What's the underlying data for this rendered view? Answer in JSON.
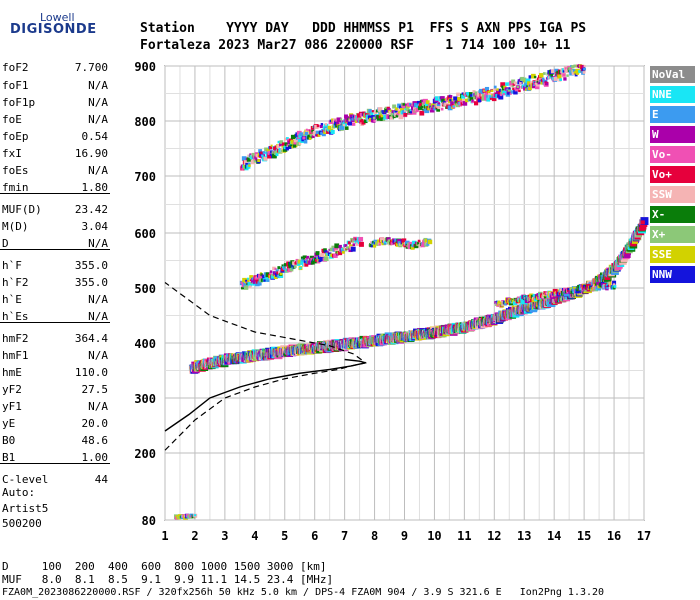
{
  "logo": {
    "line1": "Lowell",
    "line2": "DIGISONDE"
  },
  "header": {
    "row1": "Station    YYYY DAY   DDD HHMMSS P1  FFS S AXN PPS IGA PS",
    "row2": "Fortaleza 2023 Mar27 086 220000 RSF    1 714 100 10+ 11"
  },
  "params": [
    {
      "label": "foF2",
      "value": "7.700"
    },
    {
      "label": "foF1",
      "value": "N/A"
    },
    {
      "label": "foF1p",
      "value": "N/A"
    },
    {
      "label": "foE",
      "value": "N/A"
    },
    {
      "label": "foEp",
      "value": "0.54"
    },
    {
      "label": "fxI",
      "value": "16.90"
    },
    {
      "label": "foEs",
      "value": "N/A"
    },
    {
      "label": "fmin",
      "value": "1.80"
    },
    {
      "label": "MUF(D)",
      "value": "23.42"
    },
    {
      "label": "M(D)",
      "value": "3.04"
    },
    {
      "label": "D",
      "value": "N/A"
    },
    {
      "label": "h`F",
      "value": "355.0"
    },
    {
      "label": "h`F2",
      "value": "355.0"
    },
    {
      "label": "h`E",
      "value": "N/A"
    },
    {
      "label": "h`Es",
      "value": "N/A"
    },
    {
      "label": "hmF2",
      "value": "364.4"
    },
    {
      "label": "hmF1",
      "value": "N/A"
    },
    {
      "label": "hmE",
      "value": "110.0"
    },
    {
      "label": "yF2",
      "value": "27.5"
    },
    {
      "label": "yF1",
      "value": "N/A"
    },
    {
      "label": "yE",
      "value": "20.0"
    },
    {
      "label": "B0",
      "value": "48.6"
    },
    {
      "label": "B1",
      "value": "1.00"
    },
    {
      "label": "C-level",
      "value": "44"
    }
  ],
  "auto": {
    "line1": "Auto:",
    "line2": "Artist5",
    "line3": "500200"
  },
  "legend": [
    {
      "label": "NoVal",
      "color": "#8c8c8c"
    },
    {
      "label": "NNE",
      "color": "#19e6f5"
    },
    {
      "label": "E",
      "color": "#3c9bf0"
    },
    {
      "label": "W",
      "color": "#aa00aa"
    },
    {
      "label": "Vo-",
      "color": "#f050b4"
    },
    {
      "label": "Vo+",
      "color": "#e6003c"
    },
    {
      "label": "SSW",
      "color": "#f5b4b4"
    },
    {
      "label": "X-",
      "color": "#0a7d0a"
    },
    {
      "label": "X+",
      "color": "#8cc878"
    },
    {
      "label": "SSE",
      "color": "#d2d200"
    },
    {
      "label": "NNW",
      "color": "#1414dc"
    }
  ],
  "footer": {
    "row1": "D     100  200  400  600  800 1000 1500 3000 [km]",
    "row2": "MUF   8.0  8.1  8.5  9.1  9.9 11.1 14.5 23.4 [MHz]",
    "row3": "FZA0M_2023086220000.RSF / 320fx256h 50 kHz 5.0 km / DPS-4 FZA0M 904 / 3.9 S 321.6 E   Ion2Png 1.3.20"
  },
  "chart_data": {
    "type": "scatter",
    "xlabel": "",
    "ylabel": "",
    "xlim": [
      1,
      17
    ],
    "ylim": [
      80,
      900
    ],
    "x_ticks": [
      1,
      2,
      3,
      4,
      5,
      6,
      7,
      8,
      9,
      10,
      11,
      12,
      13,
      14,
      15,
      16,
      17
    ],
    "y_ticks": [
      80,
      200,
      300,
      400,
      500,
      600,
      700,
      800,
      900
    ],
    "y_scale": "piecewise",
    "grid": true,
    "traces": [
      {
        "name": "o-trace F2",
        "x": [
          1.8,
          3,
          4,
          5,
          6,
          7,
          8,
          9,
          10,
          11,
          12,
          13,
          14,
          15,
          15.5,
          16,
          16.5,
          16.9
        ],
        "y": [
          355,
          370,
          378,
          385,
          392,
          398,
          405,
          412,
          420,
          430,
          445,
          465,
          480,
          500,
          515,
          540,
          580,
          620
        ]
      },
      {
        "name": "x-trace F2 (upper)",
        "x": [
          12,
          13,
          14,
          15,
          16
        ],
        "y": [
          470,
          480,
          490,
          500,
          505
        ]
      },
      {
        "name": "second hop",
        "x": [
          3.5,
          4.5,
          5.5,
          6.5,
          7.5,
          8.5,
          9.5,
          10.5,
          11.5,
          12.5,
          13.5,
          14.5,
          15
        ],
        "y": [
          720,
          745,
          770,
          790,
          805,
          815,
          825,
          835,
          845,
          860,
          875,
          890,
          900
        ]
      },
      {
        "name": "spread 500-600",
        "x": [
          3.5,
          4.5,
          5.5,
          6.5,
          7.5
        ],
        "y": [
          505,
          525,
          545,
          565,
          585
        ]
      },
      {
        "name": "spread 580",
        "x": [
          7.8,
          8.5,
          9.2,
          9.8
        ],
        "y": [
          580,
          585,
          578,
          585
        ]
      },
      {
        "name": "low echo",
        "x": [
          1.3,
          1.6,
          2.0
        ],
        "y": [
          85,
          86,
          88
        ]
      }
    ],
    "profile_solid": {
      "x": [
        1,
        1.8,
        2.5,
        3.5,
        4.5,
        5.5,
        6.5,
        7.2,
        7.7,
        7.5,
        7.0
      ],
      "y": [
        240,
        270,
        300,
        320,
        335,
        345,
        352,
        358,
        364,
        367,
        370
      ]
    },
    "profile_dashed": {
      "x": [
        1,
        2,
        3,
        4,
        5,
        6,
        6.8,
        7.2,
        7.7,
        7.3,
        6.5,
        5.5,
        4.0,
        2.5,
        1
      ],
      "y": [
        205,
        260,
        300,
        320,
        335,
        345,
        352,
        358,
        364,
        380,
        395,
        405,
        420,
        450,
        510
      ]
    }
  }
}
